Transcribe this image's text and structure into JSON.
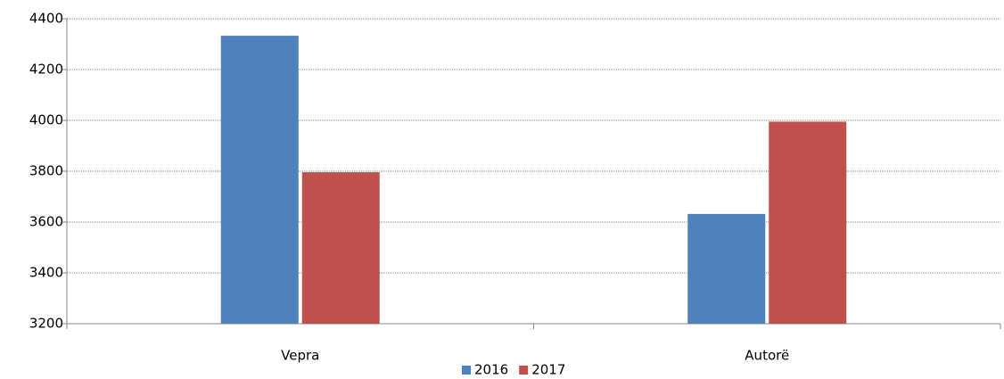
{
  "chart_data": {
    "type": "bar",
    "categories": [
      "Vepra",
      "Autorë"
    ],
    "series": [
      {
        "name": "2016",
        "color": "#4f81bd",
        "values": [
          4333,
          3632
        ]
      },
      {
        "name": "2017",
        "color": "#c0504d",
        "values": [
          3796,
          3995
        ]
      }
    ],
    "ylim": [
      3200,
      4400
    ],
    "yticks": [
      3200,
      3400,
      3600,
      3800,
      4000,
      4200,
      4400
    ],
    "grid": true,
    "legend": "bottom"
  }
}
